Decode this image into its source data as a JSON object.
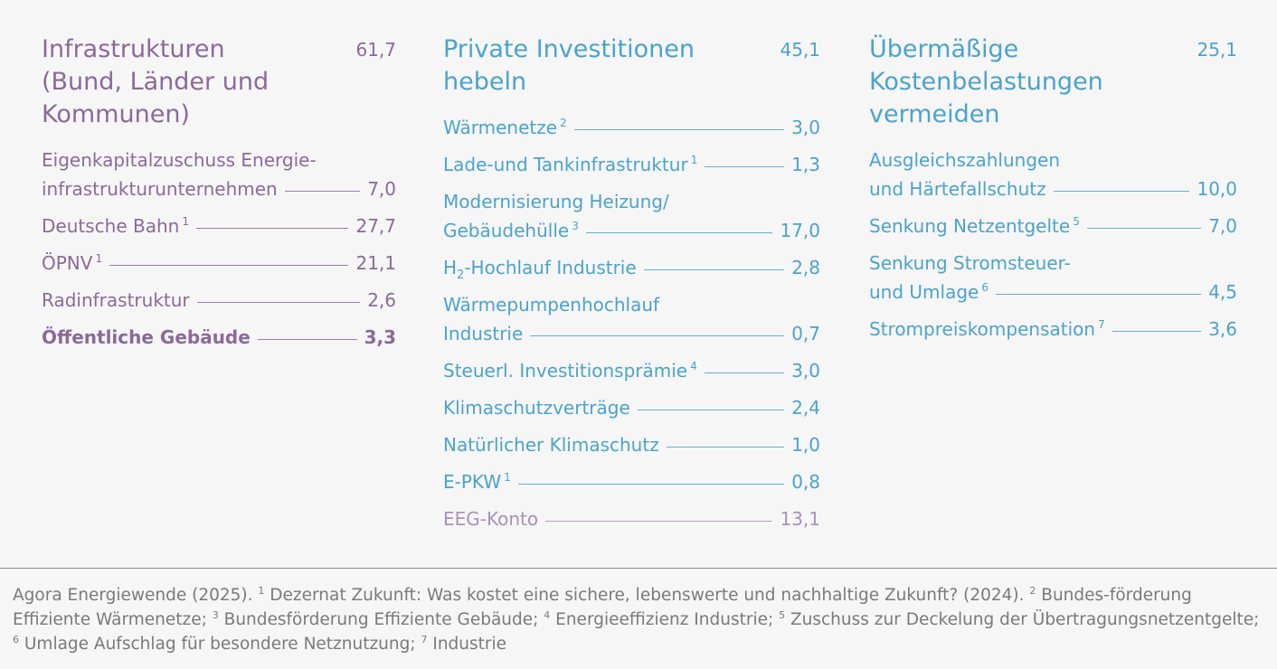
{
  "columns": [
    {
      "title": "Infrastrukturen\n(Bund, Länder und\nKommunen)",
      "total": "61,7",
      "rows": [
        {
          "line1": "Eigenkapitalzuschuss Energie-",
          "label": "infrastrukturunternehmen",
          "fn": "",
          "value": "7,0"
        },
        {
          "label": "Deutsche Bahn",
          "fn": "1",
          "value": "27,7"
        },
        {
          "label": "ÖPNV",
          "fn": "1",
          "value": "21,1"
        },
        {
          "label": "Radinfrastruktur",
          "fn": "",
          "value": "2,6"
        },
        {
          "label": "Öffentliche Gebäude",
          "fn": "",
          "value": "3,3",
          "bold": true
        }
      ]
    },
    {
      "title": "Private Investitionen\nhebeln",
      "total": "45,1",
      "rows": [
        {
          "label": "Wärmenetze",
          "fn": "2",
          "value": "3,0"
        },
        {
          "label": "Lade-und Tankinfrastruktur",
          "fn": "1",
          "value": "1,3"
        },
        {
          "line1": "Modernisierung Heizung/",
          "label": "Gebäudehülle",
          "fn": "3",
          "value": "17,0"
        },
        {
          "label_prefix": "H",
          "label_sub": "2",
          "label": "-Hochlauf Industrie",
          "fn": "",
          "value": "2,8"
        },
        {
          "line1": "Wärmepumpenhochlauf",
          "label": "Industrie",
          "fn": "",
          "value": "0,7"
        },
        {
          "label": "Steuerl. Investitionsprämie",
          "fn": "4",
          "value": "3,0"
        },
        {
          "label": "Klimaschutzverträge",
          "fn": "",
          "value": "2,4"
        },
        {
          "label": "Natürlicher Klimaschutz",
          "fn": "",
          "value": "1,0"
        },
        {
          "label": "E-PKW",
          "fn": "1",
          "value": "0,8"
        },
        {
          "label": "EEG-Konto",
          "fn": "",
          "value": "13,1",
          "alt": true
        }
      ]
    },
    {
      "title": "Übermäßige\nKostenbelastungen\nvermeiden",
      "total": "25,1",
      "rows": [
        {
          "line1": "Ausgleichszahlungen",
          "label": "und Härtefallschutz",
          "fn": "",
          "value": "10,0"
        },
        {
          "label": "Senkung Netzentgelte",
          "fn": "5",
          "value": "7,0"
        },
        {
          "line1": "Senkung Stromsteuer-",
          "label": "und Umlage",
          "fn": "6",
          "value": "4,5"
        },
        {
          "label": "Strompreiskompensation",
          "fn": "7",
          "value": "3,6"
        }
      ]
    }
  ],
  "footer": [
    {
      "t": "Agora Energiewende (2025). "
    },
    {
      "sup": "1"
    },
    {
      "t": " Dezernat Zukunft: Was kostet eine sichere, lebenswerte und nachhaltige Zukunft? (2024). "
    },
    {
      "sup": "2"
    },
    {
      "t": " Bundes-förderung Effiziente Wärmenetze; "
    },
    {
      "sup": "3"
    },
    {
      "t": " Bundesförderung Effiziente Gebäude;  "
    },
    {
      "sup": "4"
    },
    {
      "t": " Energieeffizienz Industrie; "
    },
    {
      "sup": "5"
    },
    {
      "t": " Zuschuss zur Deckelung der Übertragungsnetzentgelte; "
    },
    {
      "sup": "6"
    },
    {
      "t": " Umlage Aufschlag für besondere Netznutzung; "
    },
    {
      "sup": "7"
    },
    {
      "t": " Industrie"
    }
  ],
  "colors": {
    "purple": "#8a6a9b",
    "blue": "#4ba3cd",
    "light_purple": "#a891bd",
    "footer": "#7a7a7a"
  }
}
